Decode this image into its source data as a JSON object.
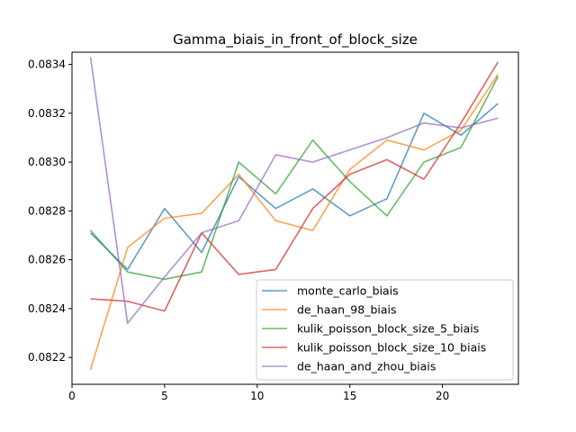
{
  "chart_data": {
    "type": "line",
    "title": "Gamma_biais_in_front_of_block_size",
    "xlabel": "",
    "ylabel": "",
    "x": [
      1,
      3,
      5,
      7,
      9,
      11,
      13,
      15,
      17,
      19,
      21,
      23
    ],
    "xlim": [
      0,
      24.1
    ],
    "ylim": [
      0.08209,
      0.08345
    ],
    "xticks": [
      0,
      5,
      10,
      15,
      20
    ],
    "yticks": [
      0.0822,
      0.0824,
      0.0826,
      0.0828,
      0.083,
      0.0832,
      0.0834
    ],
    "ytick_labels": [
      "0.0822",
      "0.0824",
      "0.0826",
      "0.0828",
      "0.0830",
      "0.0832",
      "0.0834"
    ],
    "grid": false,
    "legend_position": "lower-right",
    "series": [
      {
        "name": "monte_carlo_biais",
        "color": "#1f77b4",
        "values": [
          0.08271,
          0.08256,
          0.08281,
          0.08263,
          0.08294,
          0.08281,
          0.08289,
          0.08278,
          0.08285,
          0.0832,
          0.08311,
          0.08324
        ]
      },
      {
        "name": "de_haan_98_biais",
        "color": "#ff7f0e",
        "values": [
          0.08215,
          0.08265,
          0.08277,
          0.08279,
          0.08295,
          0.08276,
          0.08272,
          0.08297,
          0.08309,
          0.08305,
          0.08313,
          0.08336
        ]
      },
      {
        "name": "kulik_poisson_block_size_5_biais",
        "color": "#2ca02c",
        "values": [
          0.08272,
          0.08255,
          0.08252,
          0.08255,
          0.083,
          0.08287,
          0.08309,
          0.08292,
          0.08278,
          0.083,
          0.08306,
          0.08335
        ]
      },
      {
        "name": "kulik_poisson_block_size_10_biais",
        "color": "#d62728",
        "values": [
          0.08244,
          0.08243,
          0.08239,
          0.08271,
          0.08254,
          0.08256,
          0.08281,
          0.08295,
          0.08301,
          0.08293,
          0.08316,
          0.08341
        ]
      },
      {
        "name": "de_haan_and_zhou_biais",
        "color": "#9467bd",
        "values": [
          0.08343,
          0.08234,
          0.08253,
          0.08271,
          0.08276,
          0.08303,
          0.083,
          0.08305,
          0.0831,
          0.08316,
          0.08314,
          0.08318
        ]
      }
    ]
  }
}
